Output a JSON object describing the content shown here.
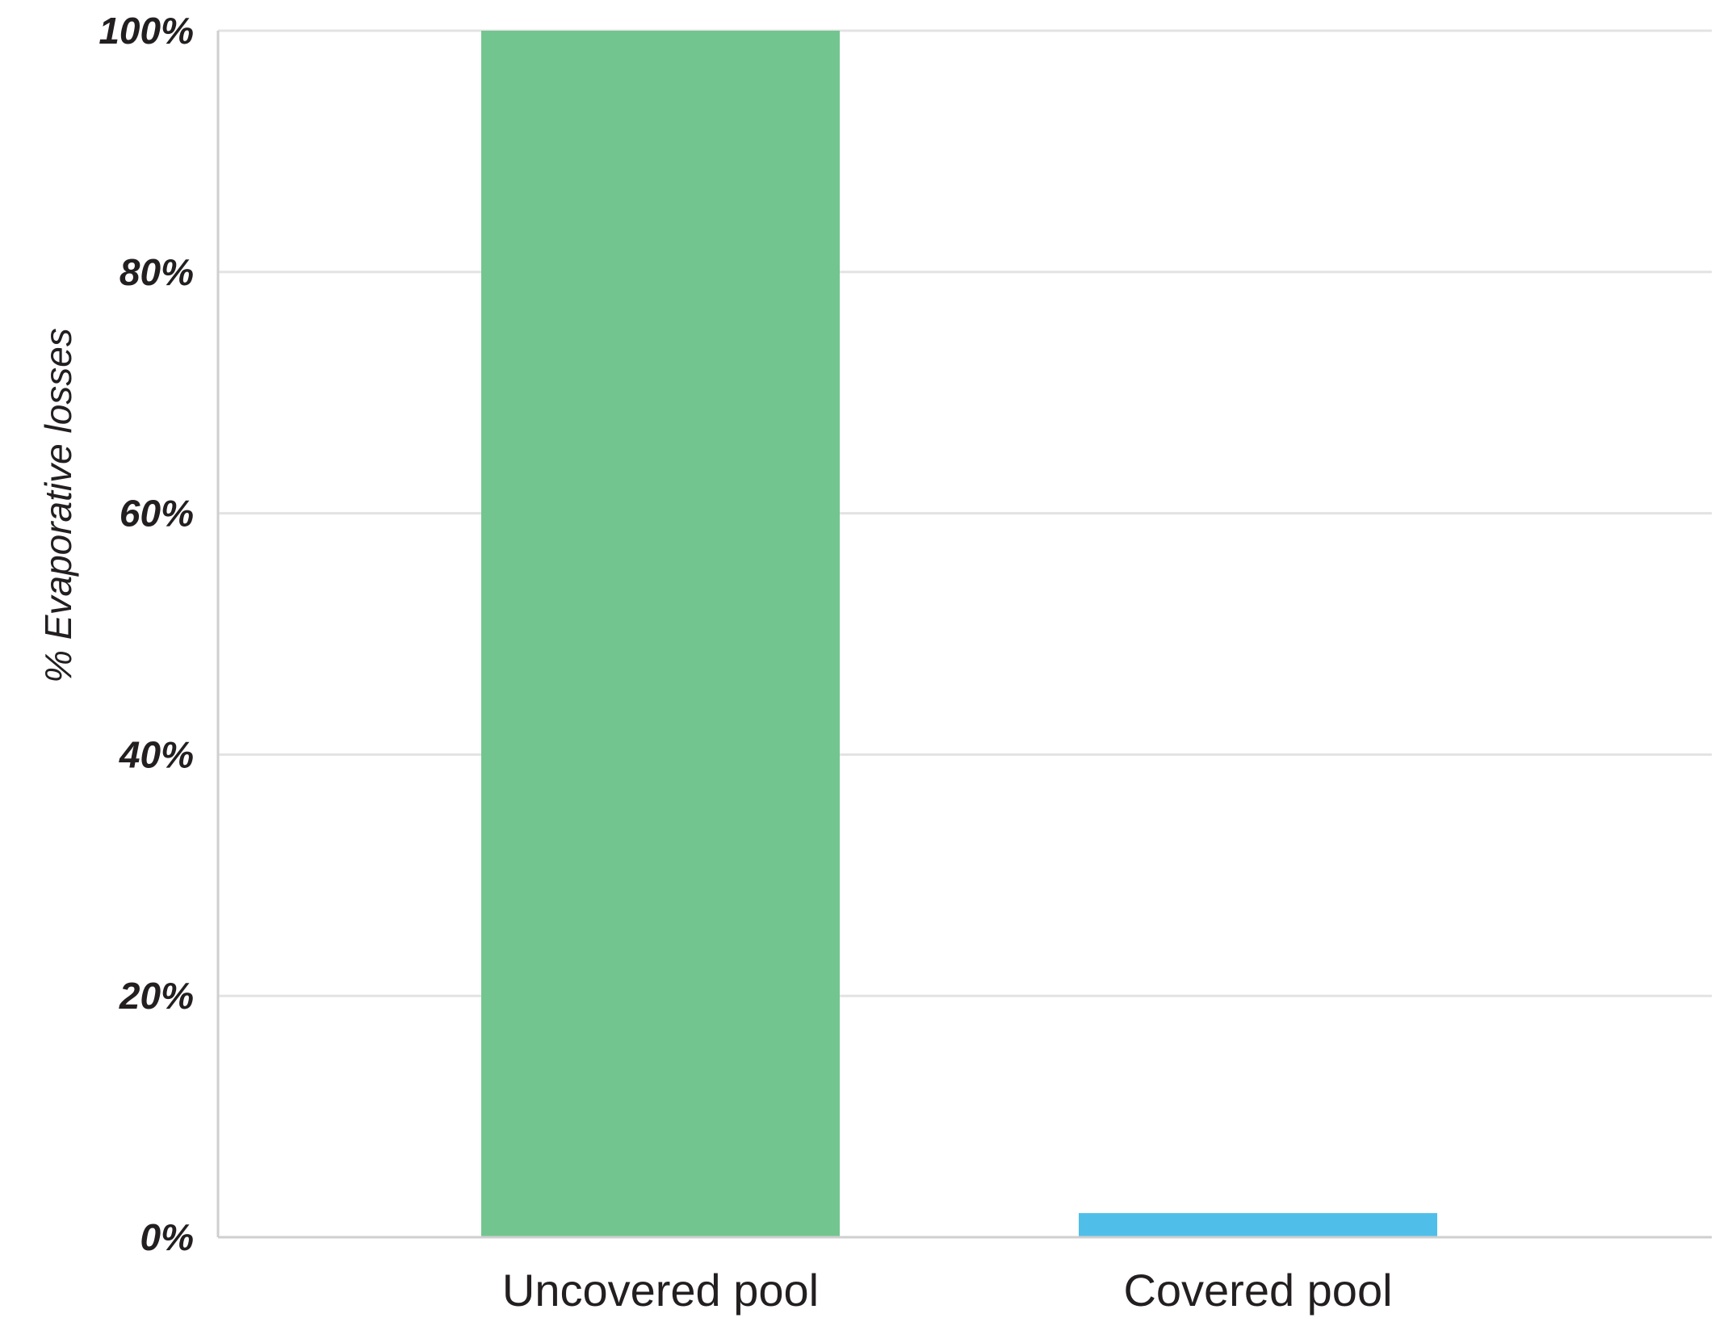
{
  "chart_data": {
    "type": "bar",
    "categories": [
      "Uncovered pool",
      "Covered pool"
    ],
    "values": [
      100,
      2
    ],
    "colors": [
      "#73c58f",
      "#4fbfe9"
    ],
    "title": "",
    "xlabel": "",
    "ylabel": "% Evaporative losses",
    "ylim": [
      0,
      100
    ],
    "yticks": [
      0,
      20,
      40,
      60,
      80,
      100
    ],
    "ytick_labels": [
      "0%",
      "20%",
      "40%",
      "60%",
      "80%",
      "100%"
    ],
    "grid": true,
    "grid_color": "#e3e3e3"
  }
}
